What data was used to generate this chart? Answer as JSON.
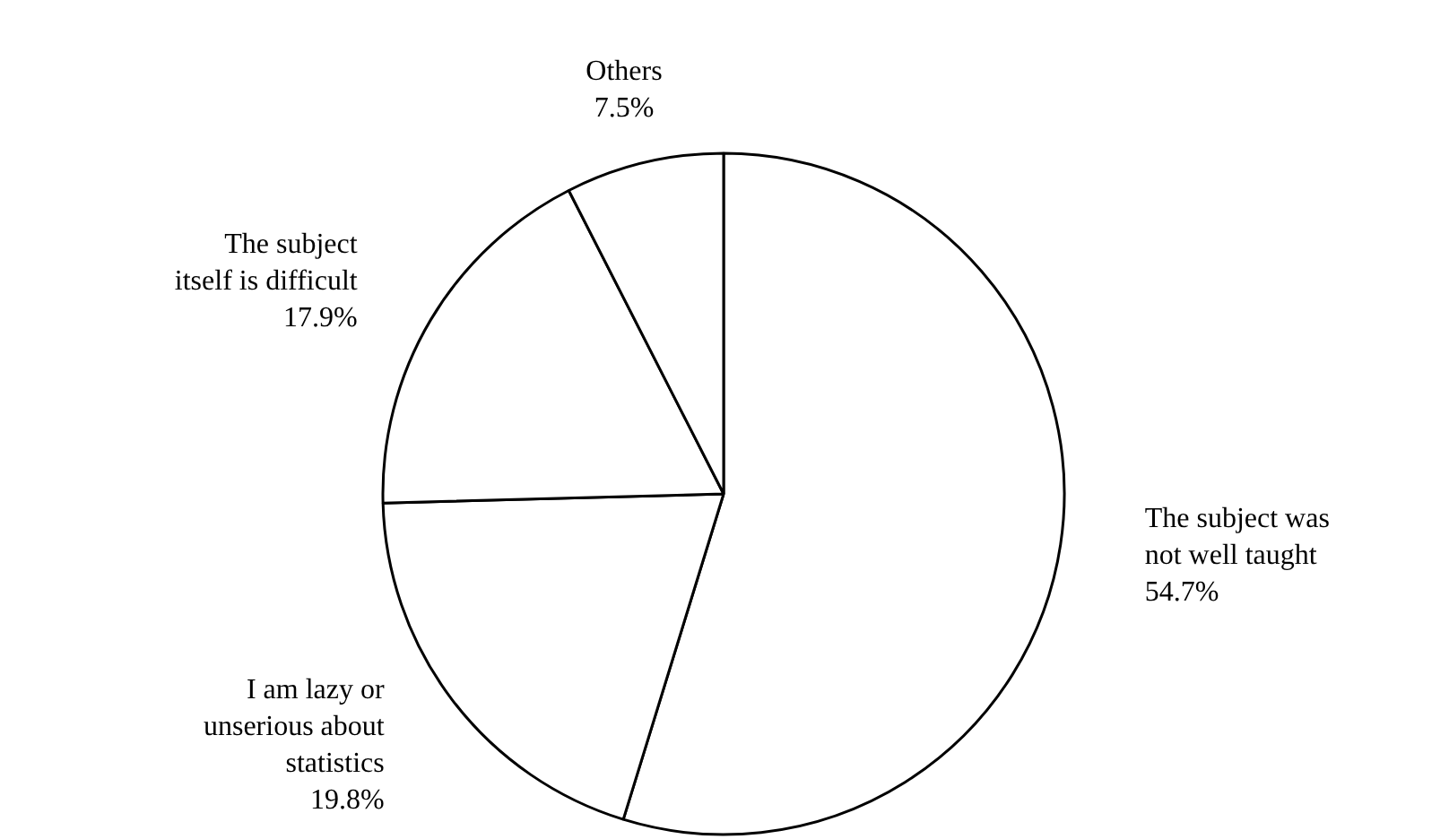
{
  "chart_data": {
    "type": "pie",
    "categories": [
      "The subject was\nnot well taught",
      "I am lazy or\nunserious about\nstatistics",
      "The subject\nitself is difficult",
      "Others"
    ],
    "values": [
      54.7,
      19.8,
      17.9,
      7.5
    ],
    "value_labels": [
      "54.7%",
      "19.8%",
      "17.9%",
      "7.5%"
    ],
    "colors": [
      "#ffffff",
      "#ffffff",
      "#ffffff",
      "#ffffff"
    ],
    "legend": false
  }
}
